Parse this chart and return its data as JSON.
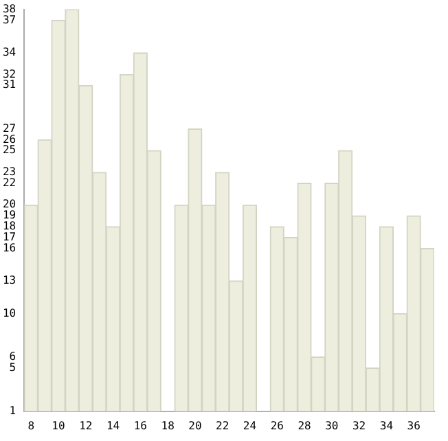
{
  "chart_data": {
    "type": "bar",
    "categories": [
      "8",
      null,
      "10",
      null,
      "12",
      null,
      "14",
      null,
      "16",
      null,
      "18",
      null,
      "20",
      null,
      "22",
      null,
      "24",
      null,
      "26",
      null,
      "28",
      null,
      "30",
      null,
      "32",
      null,
      "34",
      null,
      "36",
      null
    ],
    "values": [
      20,
      26,
      37,
      38,
      31,
      23,
      18,
      32,
      34,
      25,
      1,
      20,
      27,
      20,
      23,
      13,
      20,
      1,
      18,
      17,
      22,
      6,
      22,
      25,
      19,
      5,
      18,
      10,
      19,
      16
    ],
    "color": "#eeeedf",
    "ylim": [
      1,
      38
    ],
    "yticks": [
      1,
      5,
      6,
      10,
      13,
      16,
      17,
      18,
      19,
      20,
      22,
      23,
      25,
      26,
      27,
      31,
      32,
      34,
      37,
      38
    ],
    "grid": false,
    "legend": false
  }
}
